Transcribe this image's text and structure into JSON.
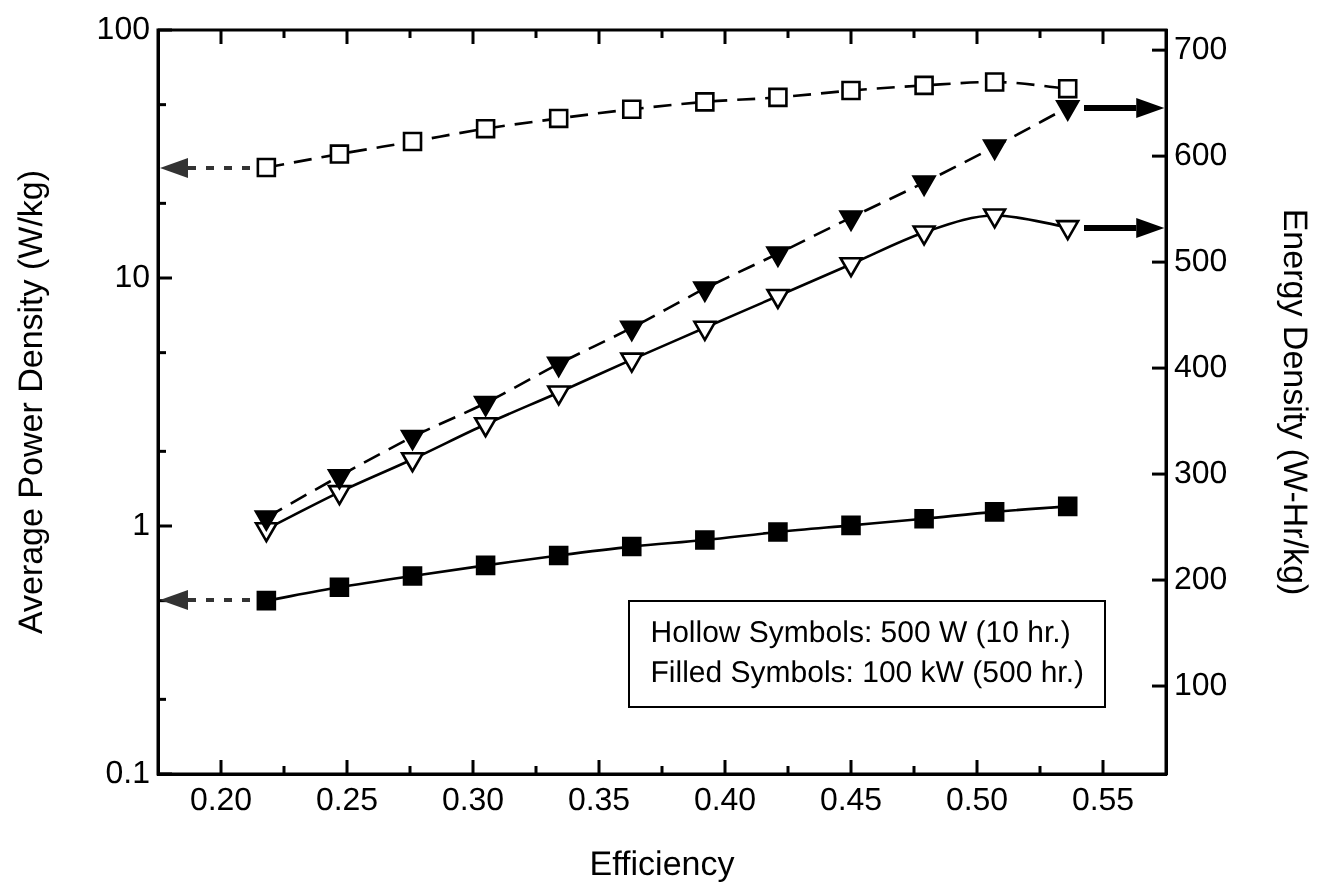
{
  "chart_data": {
    "type": "line",
    "xlabel": "Efficiency",
    "ylabel": "Average Power Density (W/kg)",
    "y2label": "Energy Density (W-Hr/kg)",
    "x": [
      0.218,
      0.247,
      0.276,
      0.305,
      0.334,
      0.363,
      0.392,
      0.421,
      0.45,
      0.479,
      0.507,
      0.536
    ],
    "series": [
      {
        "color": "#000000",
        "marker": "square-open",
        "line_style": "dashed",
        "axis": "y",
        "values": [
          27.9,
          31.6,
          35.5,
          40,
          44,
          47.9,
          51.3,
          53.5,
          57,
          59.8,
          61.7,
          58
        ]
      },
      {
        "color": "#000000",
        "marker": "square",
        "line_style": "solid",
        "axis": "y",
        "values": [
          0.5,
          0.566,
          0.629,
          0.694,
          0.761,
          0.826,
          0.878,
          0.946,
          1.006,
          1.07,
          1.14,
          1.2
        ]
      },
      {
        "color": "#000000",
        "marker": "triangle-down",
        "line_style": "dashed",
        "axis": "y2",
        "values": [
          259,
          298,
          335,
          367,
          404,
          438,
          475,
          508,
          542,
          575,
          609,
          646
        ]
      },
      {
        "color": "#000000",
        "marker": "triangle-down-open",
        "line_style": "solid",
        "axis": "y2",
        "values": [
          248,
          283,
          314,
          347,
          377,
          408,
          438,
          468,
          498,
          528,
          544,
          533
        ]
      }
    ],
    "xlim": [
      0.175,
      0.575
    ],
    "xticks": [
      {
        "value": 0.2,
        "label": "0.20"
      },
      {
        "value": 0.225,
        "label": null
      },
      {
        "value": 0.25,
        "label": "0.25"
      },
      {
        "value": 0.275,
        "label": null
      },
      {
        "value": 0.3,
        "label": "0.30"
      },
      {
        "value": 0.325,
        "label": null
      },
      {
        "value": 0.35,
        "label": "0.35"
      },
      {
        "value": 0.375,
        "label": null
      },
      {
        "value": 0.4,
        "label": "0.40"
      },
      {
        "value": 0.425,
        "label": null
      },
      {
        "value": 0.45,
        "label": "0.45"
      },
      {
        "value": 0.475,
        "label": null
      },
      {
        "value": 0.5,
        "label": "0.50"
      },
      {
        "value": 0.525,
        "label": null
      },
      {
        "value": 0.55,
        "label": "0.55"
      }
    ],
    "log": "y",
    "ylim": [
      0.1,
      100
    ],
    "yticks": [
      0.1,
      {
        "value": 0.2,
        "label": null
      },
      {
        "value": 0.5,
        "label": null
      },
      1,
      {
        "value": 2,
        "label": null
      },
      {
        "value": 5,
        "label": null
      },
      10,
      {
        "value": 20,
        "label": null
      },
      {
        "value": 50,
        "label": null
      },
      100
    ],
    "y2lim": [
      17,
      719
    ],
    "y2ticks": [
      100,
      200,
      300,
      400,
      500,
      600,
      700
    ],
    "grid": false,
    "legend": false,
    "annotations": [
      "Hollow Symbols: 500 W (10 hr.)",
      "Filled Symbols: 100 kW (500 hr.)"
    ]
  }
}
